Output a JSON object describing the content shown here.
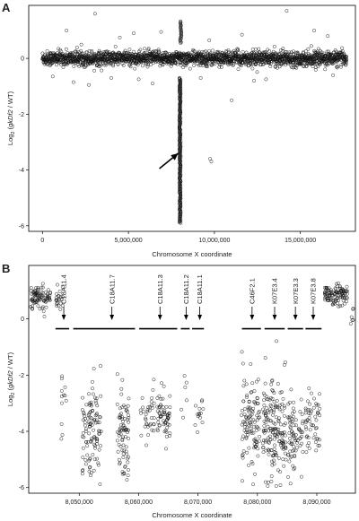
{
  "chart_data": [
    {
      "panel": "A",
      "type": "scatter",
      "xlabel": "Chromosome X coordinate",
      "ylabel_prefix": "Log",
      "ylabel_sub": "2",
      "ylabel_open": " (",
      "ylabel_italic": "gkDf2",
      "ylabel_rest": " / WT)",
      "xlim": [
        -800000,
        18200000
      ],
      "ylim": [
        -6.2,
        1.9
      ],
      "x_ticks": [
        0,
        5000000,
        10000000,
        15000000
      ],
      "x_tick_labels": [
        "0",
        "5,000,000",
        "10,000,000",
        "15,000,000"
      ],
      "y_ticks": [
        -6,
        -4,
        -2,
        0
      ],
      "y_tick_labels": [
        "-6",
        "-4",
        "-2",
        "0"
      ],
      "marker": "open-circle",
      "arrow": {
        "from": [
          6800000,
          -3.95
        ],
        "to": [
          7900000,
          -3.4
        ]
      },
      "baseline": {
        "x_range": [
          0,
          17700000
        ],
        "y_mean": 0,
        "y_sd": 0.13
      },
      "deletion": {
        "x": 8000000,
        "y_range": [
          -5.9,
          -0.7
        ]
      },
      "duplication": {
        "x": 8040000,
        "y_range": [
          0.55,
          1.35
        ]
      },
      "outliers": [
        {
          "x": 1400000,
          "y": 1.0
        },
        {
          "x": 3050000,
          "y": 1.6
        },
        {
          "x": 4500000,
          "y": 0.75
        },
        {
          "x": 5300000,
          "y": 0.9
        },
        {
          "x": 6900000,
          "y": 0.95
        },
        {
          "x": 9700000,
          "y": 0.65
        },
        {
          "x": 11600000,
          "y": 0.85
        },
        {
          "x": 14200000,
          "y": 1.7
        },
        {
          "x": 15800000,
          "y": 1.0
        },
        {
          "x": 16600000,
          "y": 0.8
        },
        {
          "x": 600000,
          "y": -0.65
        },
        {
          "x": 1800000,
          "y": -0.85
        },
        {
          "x": 2700000,
          "y": -0.95
        },
        {
          "x": 4000000,
          "y": -0.7
        },
        {
          "x": 5600000,
          "y": -0.75
        },
        {
          "x": 6400000,
          "y": -0.9
        },
        {
          "x": 9200000,
          "y": -0.7
        },
        {
          "x": 11000000,
          "y": -1.5
        },
        {
          "x": 12300000,
          "y": -0.8
        },
        {
          "x": 13000000,
          "y": -0.75
        },
        {
          "x": 9750000,
          "y": -3.6
        },
        {
          "x": 9820000,
          "y": -3.7
        },
        {
          "x": 16900000,
          "y": -0.6
        }
      ]
    },
    {
      "panel": "B",
      "type": "scatter",
      "xlabel": "Chromosome X coordinate",
      "ylabel_prefix": "Log",
      "ylabel_sub": "2",
      "ylabel_open": " (",
      "ylabel_italic": "gkDf2",
      "ylabel_rest": " / WT)",
      "xlim": [
        8041500,
        8096500
      ],
      "ylim": [
        -6.2,
        1.9
      ],
      "x_ticks": [
        8050000,
        8060000,
        8070000,
        8080000,
        8090000
      ],
      "x_tick_labels": [
        "8,050,000",
        "8,060,000",
        "8,070,000",
        "8,080,000",
        "8,090,000"
      ],
      "y_ticks": [
        -6,
        -4,
        -2,
        0
      ],
      "y_tick_labels": [
        "-6",
        "-4",
        "-2",
        "0"
      ],
      "marker": "open-circle",
      "genes": [
        {
          "name": "C18A11.4",
          "start": 8046000,
          "end": 8048300,
          "arrow_x": 8047400
        },
        {
          "name": "C18A11.7",
          "start": 8049000,
          "end": 8059400,
          "arrow_x": 8055500
        },
        {
          "name": "C18A11.3",
          "start": 8060100,
          "end": 8066500,
          "arrow_x": 8063600
        },
        {
          "name": "C18A11.2",
          "start": 8067100,
          "end": 8068600,
          "arrow_x": 8068000
        },
        {
          "name": "C18A11.1",
          "start": 8069000,
          "end": 8071000,
          "arrow_x": 8070300
        },
        {
          "name": "C46F2.1",
          "start": 8077400,
          "end": 8080600,
          "arrow_x": 8079100
        },
        {
          "name": "K07E3.4",
          "start": 8081200,
          "end": 8084600,
          "arrow_x": 8082900
        },
        {
          "name": "K07E3.3",
          "start": 8085100,
          "end": 8087700,
          "arrow_x": 8086400
        },
        {
          "name": "K07E3.8",
          "start": 8088100,
          "end": 8090800,
          "arrow_x": 8089400
        }
      ],
      "gene_bar_y": -0.35,
      "clusters": [
        {
          "x_range": [
            8041800,
            8045200
          ],
          "y_mean": 0.75,
          "y_sd": 0.2,
          "n": 90
        },
        {
          "x_range": [
            8046100,
            8047300
          ],
          "y_mean": 0.75,
          "y_sd": 0.22,
          "n": 22
        },
        {
          "x_range": [
            8046800,
            8048000
          ],
          "y_mean": -2.7,
          "y_sd": 0.6,
          "n": 12
        },
        {
          "x_range": [
            8050500,
            8053700
          ],
          "y_mean": -3.9,
          "y_sd": 0.85,
          "n": 110
        },
        {
          "x_range": [
            8056400,
            8058400
          ],
          "y_mean": -4.1,
          "y_sd": 0.9,
          "n": 80
        },
        {
          "x_range": [
            8060300,
            8062700
          ],
          "y_mean": -3.2,
          "y_sd": 0.6,
          "n": 35
        },
        {
          "x_range": [
            8063100,
            8065300
          ],
          "y_mean": -3.4,
          "y_sd": 0.45,
          "n": 60
        },
        {
          "x_range": [
            8067200,
            8068300
          ],
          "y_mean": -2.9,
          "y_sd": 0.4,
          "n": 6
        },
        {
          "x_range": [
            8069500,
            8070900
          ],
          "y_mean": -3.6,
          "y_sd": 0.5,
          "n": 14
        },
        {
          "x_range": [
            8077300,
            8080400
          ],
          "y_mean": -3.7,
          "y_sd": 0.85,
          "n": 110
        },
        {
          "x_range": [
            8080900,
            8084800
          ],
          "y_mean": -4.0,
          "y_sd": 0.9,
          "n": 170
        },
        {
          "x_range": [
            8085100,
            8087700
          ],
          "y_mean": -4.1,
          "y_sd": 0.7,
          "n": 75
        },
        {
          "x_range": [
            8088100,
            8090500
          ],
          "y_mean": -3.7,
          "y_sd": 0.6,
          "n": 55
        },
        {
          "x_range": [
            8091300,
            8095200
          ],
          "y_mean": 0.85,
          "y_sd": 0.17,
          "n": 110
        },
        {
          "x_range": [
            8095500,
            8096300
          ],
          "y_mean": 0.1,
          "y_sd": 0.22,
          "n": 6
        }
      ]
    }
  ]
}
